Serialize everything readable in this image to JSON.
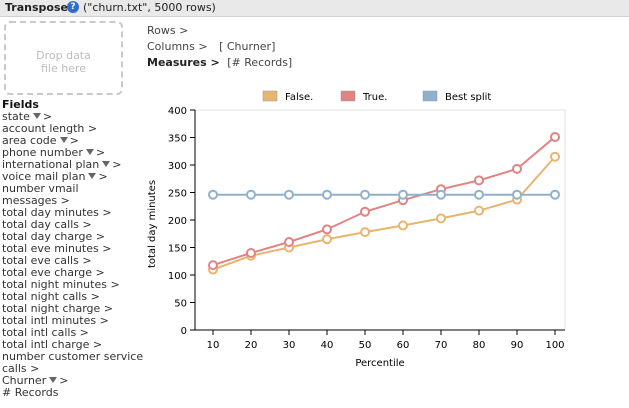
{
  "header": {
    "title": "Transpose",
    "file_info": "(\"churn.txt\", 5000 rows)"
  },
  "dropzone": {
    "text": "Drop data\nfile here"
  },
  "shelves": {
    "rows": {
      "label": "Rows >",
      "value": ""
    },
    "columns": {
      "label": "Columns >",
      "value": "[ Churner]"
    },
    "measures": {
      "label": "Measures >",
      "value": "[# Records]"
    }
  },
  "fields_title": "Fields",
  "fields": [
    {
      "label": "state",
      "filter": true,
      "arrow": ">"
    },
    {
      "label": "account length >",
      "filter": false
    },
    {
      "label": "area code",
      "filter": true,
      "arrow": ">"
    },
    {
      "label": "phone number",
      "filter": true,
      "arrow": ">"
    },
    {
      "label": "international plan",
      "filter": true,
      "arrow": ">"
    },
    {
      "label": "voice mail plan",
      "filter": true,
      "arrow": ">"
    },
    {
      "label": "number vmail",
      "filter": false
    },
    {
      "label": "messages >",
      "filter": false
    },
    {
      "label": "total day minutes >",
      "filter": false
    },
    {
      "label": "total day calls >",
      "filter": false
    },
    {
      "label": "total day charge >",
      "filter": false
    },
    {
      "label": "total eve minutes >",
      "filter": false
    },
    {
      "label": "total eve calls >",
      "filter": false
    },
    {
      "label": "total eve charge >",
      "filter": false
    },
    {
      "label": "total night minutes >",
      "filter": false
    },
    {
      "label": "total night calls >",
      "filter": false
    },
    {
      "label": "total night charge >",
      "filter": false
    },
    {
      "label": "total intl minutes >",
      "filter": false
    },
    {
      "label": "total intl calls >",
      "filter": false
    },
    {
      "label": "total intl charge >",
      "filter": false
    },
    {
      "label": "number customer service",
      "filter": false
    },
    {
      "label": "calls >",
      "filter": false
    },
    {
      "label": "Churner",
      "filter": true,
      "arrow": ">"
    },
    {
      "label": "# Records",
      "filter": false
    }
  ],
  "chart_data": {
    "type": "line",
    "title": "",
    "xlabel": "Percentile",
    "ylabel": "total day minutes",
    "x": [
      10,
      20,
      30,
      40,
      50,
      60,
      70,
      80,
      90,
      100
    ],
    "ylim": [
      0,
      400
    ],
    "yticks": [
      0,
      50,
      100,
      150,
      200,
      250,
      300,
      350,
      400
    ],
    "legend_position": "top",
    "series": [
      {
        "name": "False.",
        "color": "#e8b56f",
        "values": [
          110,
          135,
          150,
          165,
          178,
          190,
          203,
          217,
          237,
          315
        ]
      },
      {
        "name": "True.",
        "color": "#e28383",
        "values": [
          118,
          140,
          160,
          183,
          215,
          236,
          256,
          272,
          293,
          351
        ]
      },
      {
        "name": "Best split",
        "color": "#8fb1cf",
        "values": [
          246,
          246,
          246,
          246,
          246,
          246,
          246,
          246,
          246,
          246
        ]
      }
    ]
  }
}
